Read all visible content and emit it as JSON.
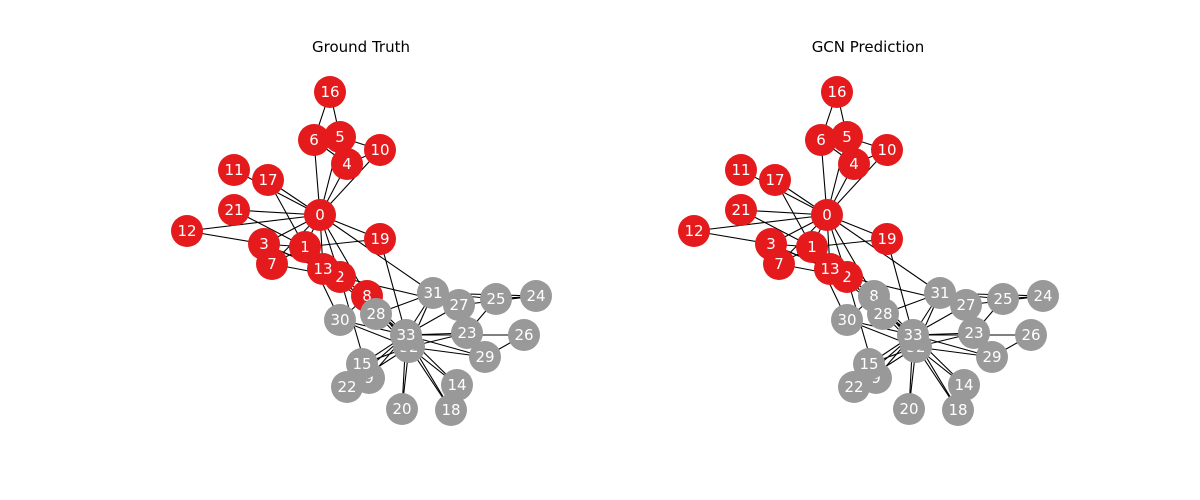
{
  "colors": {
    "class_a": "#e41a1c",
    "class_b": "#999999",
    "edge": "#000000",
    "label": "#ffffff"
  },
  "panels": [
    {
      "title": "Ground Truth",
      "class_a_nodes": [
        0,
        1,
        2,
        3,
        4,
        5,
        6,
        7,
        8,
        10,
        11,
        12,
        13,
        16,
        17,
        19,
        21
      ]
    },
    {
      "title": "GCN Prediction",
      "class_a_nodes": [
        0,
        1,
        2,
        3,
        4,
        5,
        6,
        7,
        10,
        11,
        12,
        13,
        16,
        17,
        19,
        21
      ]
    }
  ],
  "nodes": [
    {
      "id": "0"
    },
    {
      "id": "1"
    },
    {
      "id": "2"
    },
    {
      "id": "3"
    },
    {
      "id": "4"
    },
    {
      "id": "5"
    },
    {
      "id": "6"
    },
    {
      "id": "7"
    },
    {
      "id": "8"
    },
    {
      "id": "9"
    },
    {
      "id": "10"
    },
    {
      "id": "11"
    },
    {
      "id": "12"
    },
    {
      "id": "13"
    },
    {
      "id": "14"
    },
    {
      "id": "15"
    },
    {
      "id": "16"
    },
    {
      "id": "17"
    },
    {
      "id": "18"
    },
    {
      "id": "19"
    },
    {
      "id": "20"
    },
    {
      "id": "21"
    },
    {
      "id": "22"
    },
    {
      "id": "23"
    },
    {
      "id": "24"
    },
    {
      "id": "25"
    },
    {
      "id": "26"
    },
    {
      "id": "27"
    },
    {
      "id": "28"
    },
    {
      "id": "29"
    },
    {
      "id": "30"
    },
    {
      "id": "31"
    },
    {
      "id": "32"
    },
    {
      "id": "33"
    }
  ],
  "edges": [
    [
      0,
      1
    ],
    [
      0,
      2
    ],
    [
      0,
      3
    ],
    [
      0,
      4
    ],
    [
      0,
      5
    ],
    [
      0,
      6
    ],
    [
      0,
      7
    ],
    [
      0,
      8
    ],
    [
      0,
      10
    ],
    [
      0,
      11
    ],
    [
      0,
      12
    ],
    [
      0,
      13
    ],
    [
      0,
      17
    ],
    [
      0,
      19
    ],
    [
      0,
      21
    ],
    [
      0,
      31
    ],
    [
      1,
      2
    ],
    [
      1,
      3
    ],
    [
      1,
      7
    ],
    [
      1,
      13
    ],
    [
      1,
      17
    ],
    [
      1,
      19
    ],
    [
      1,
      21
    ],
    [
      1,
      30
    ],
    [
      2,
      3
    ],
    [
      2,
      7
    ],
    [
      2,
      8
    ],
    [
      2,
      9
    ],
    [
      2,
      13
    ],
    [
      2,
      27
    ],
    [
      2,
      28
    ],
    [
      2,
      32
    ],
    [
      3,
      7
    ],
    [
      3,
      12
    ],
    [
      3,
      13
    ],
    [
      4,
      6
    ],
    [
      4,
      10
    ],
    [
      5,
      6
    ],
    [
      5,
      10
    ],
    [
      5,
      16
    ],
    [
      6,
      16
    ],
    [
      8,
      30
    ],
    [
      8,
      32
    ],
    [
      8,
      33
    ],
    [
      9,
      33
    ],
    [
      13,
      33
    ],
    [
      14,
      32
    ],
    [
      14,
      33
    ],
    [
      15,
      32
    ],
    [
      15,
      33
    ],
    [
      18,
      32
    ],
    [
      18,
      33
    ],
    [
      19,
      33
    ],
    [
      20,
      32
    ],
    [
      20,
      33
    ],
    [
      22,
      32
    ],
    [
      22,
      33
    ],
    [
      23,
      25
    ],
    [
      23,
      27
    ],
    [
      23,
      29
    ],
    [
      23,
      32
    ],
    [
      23,
      33
    ],
    [
      24,
      25
    ],
    [
      24,
      27
    ],
    [
      24,
      31
    ],
    [
      25,
      31
    ],
    [
      26,
      29
    ],
    [
      26,
      33
    ],
    [
      27,
      33
    ],
    [
      28,
      31
    ],
    [
      28,
      33
    ],
    [
      29,
      32
    ],
    [
      29,
      33
    ],
    [
      30,
      32
    ],
    [
      30,
      33
    ],
    [
      31,
      32
    ],
    [
      31,
      33
    ],
    [
      32,
      33
    ]
  ]
}
